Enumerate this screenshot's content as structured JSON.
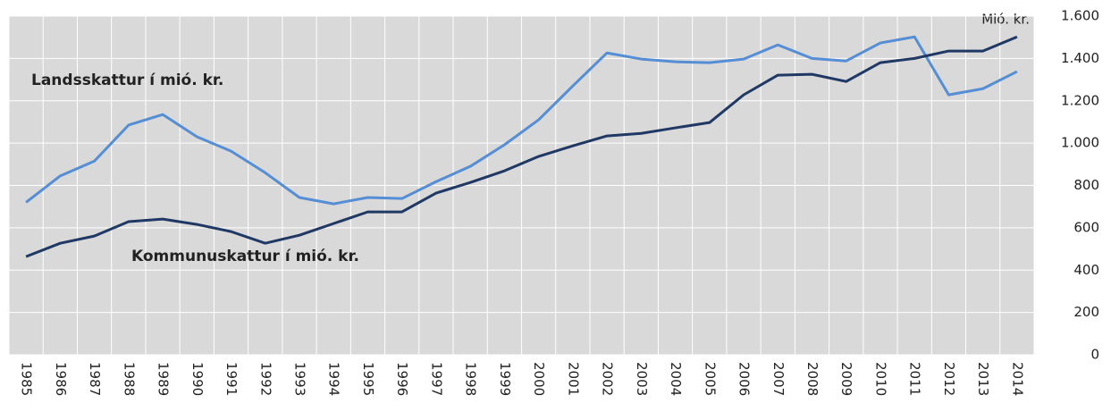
{
  "chart_data": {
    "type": "line",
    "y_label": "Mió. kr.",
    "categories": [
      "1985",
      "1986",
      "1987",
      "1988",
      "1989",
      "1990",
      "1991",
      "1992",
      "1993",
      "1994",
      "1995",
      "1996",
      "1997",
      "1998",
      "1999",
      "2000",
      "2001",
      "2002",
      "2003",
      "2004",
      "2005",
      "2006",
      "2007",
      "2008",
      "2009",
      "2010",
      "2011",
      "2012",
      "2013",
      "2014"
    ],
    "series": [
      {
        "name": "Landsskattur í mió. kr.",
        "color": "#558ed5",
        "values": [
          720,
          845,
          915,
          1085,
          1135,
          1030,
          962,
          860,
          743,
          713,
          743,
          738,
          818,
          890,
          992,
          1110,
          1270,
          1426,
          1397,
          1384,
          1380,
          1397,
          1464,
          1400,
          1388,
          1473,
          1502,
          1228,
          1257,
          1338
        ]
      },
      {
        "name": "Kommunuskattur í mió. kr.",
        "color": "#1f3864",
        "values": [
          464,
          527,
          561,
          629,
          641,
          616,
          582,
          527,
          565,
          620,
          675,
          675,
          764,
          814,
          869,
          937,
          987,
          1034,
          1046,
          1072,
          1097,
          1228,
          1321,
          1325,
          1291,
          1380,
          1400,
          1435,
          1435,
          1502
        ]
      }
    ],
    "ylim": [
      0,
      1600
    ],
    "yticks": [
      0,
      200,
      400,
      600,
      800,
      {
        "value": 1000,
        "label": "1.000"
      },
      {
        "value": 1200,
        "label": "1.200"
      },
      {
        "value": 1400,
        "label": "1.400"
      },
      {
        "value": 1600,
        "label": "1.600"
      }
    ],
    "grid": true,
    "plot_background": "#d9d9d9"
  }
}
